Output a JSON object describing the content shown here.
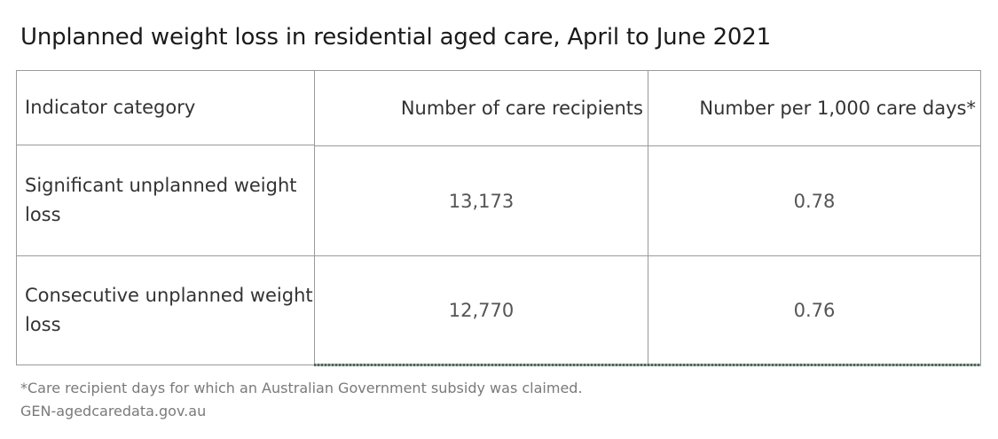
{
  "title": "Unplanned weight loss in residential aged care, April to June 2021",
  "table": {
    "headers": {
      "category": "Indicator category",
      "recipients": "Number of care recipients",
      "per_1000": "Number per 1,000 care days*"
    },
    "rows": [
      {
        "category": "Significant unplanned weight loss",
        "recipients": "13,173",
        "per_1000": "0.78"
      },
      {
        "category": "Consecutive unplanned weight loss",
        "recipients": "12,770",
        "per_1000": "0.76"
      }
    ]
  },
  "footnote": "*Care recipient days for which an Australian Government subsidy was claimed.",
  "source": "GEN-agedcaredata.gov.au"
}
